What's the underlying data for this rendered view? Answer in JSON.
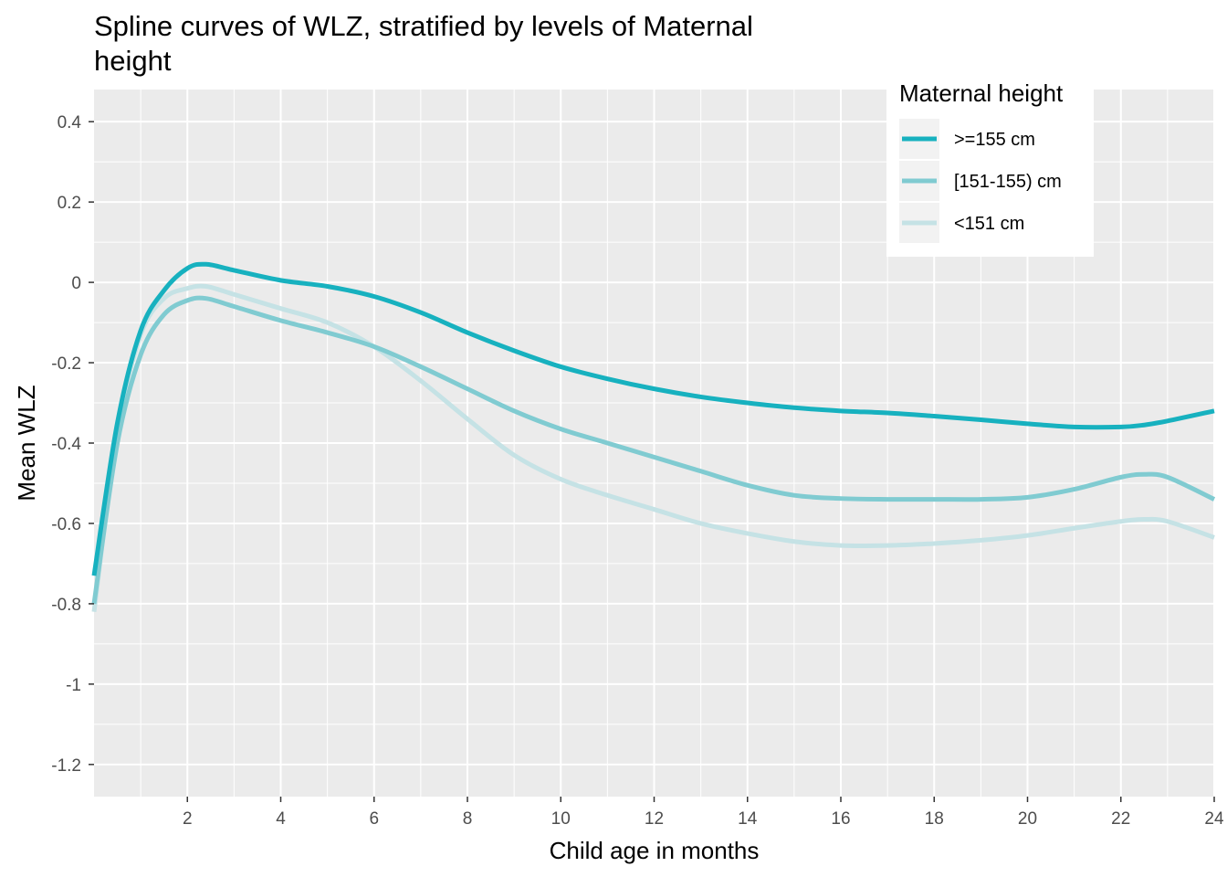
{
  "chart_data": {
    "type": "line",
    "title": "Spline curves of WLZ, stratified by levels of Maternal height",
    "xlabel": "Child age in months",
    "ylabel": "Mean WLZ",
    "xlim": [
      0,
      24
    ],
    "ylim": [
      -1.28,
      0.48
    ],
    "x_ticks": [
      2,
      4,
      6,
      8,
      10,
      12,
      14,
      16,
      18,
      20,
      22,
      24
    ],
    "x_tick_labels": [
      "2",
      "4",
      "6",
      "8",
      "10",
      "12",
      "14",
      "16",
      "18",
      "20",
      "22",
      "24"
    ],
    "y_ticks": [
      0.4,
      0.2,
      0,
      -0.2,
      -0.4,
      -0.6,
      -0.8,
      -1,
      -1.2
    ],
    "y_tick_labels": [
      "0.4",
      "0.2",
      "0",
      "-0.2",
      "-0.4",
      "-0.6",
      "-0.8",
      "-1",
      "-1.2"
    ],
    "grid": true,
    "legend": {
      "title": "Maternal height",
      "position": "top-right"
    },
    "series": [
      {
        "name": ">=155 cm",
        "color": "#17b1bf",
        "x": [
          0,
          0.5,
          1,
          1.5,
          2,
          2.4,
          3,
          4,
          5,
          6,
          7,
          8,
          9,
          10,
          11,
          12,
          13,
          14,
          15,
          16,
          17,
          18,
          19,
          20,
          21,
          22,
          22.5,
          23,
          24
        ],
        "y": [
          -0.73,
          -0.35,
          -0.12,
          -0.02,
          0.035,
          0.045,
          0.03,
          0.005,
          -0.01,
          -0.035,
          -0.075,
          -0.125,
          -0.17,
          -0.21,
          -0.24,
          -0.265,
          -0.285,
          -0.3,
          -0.312,
          -0.32,
          -0.325,
          -0.333,
          -0.342,
          -0.352,
          -0.36,
          -0.36,
          -0.355,
          -0.345,
          -0.32
        ]
      },
      {
        "name": "[151-155) cm",
        "color": "#80cbd1",
        "x": [
          0,
          0.5,
          1,
          1.5,
          2,
          2.4,
          3,
          4,
          5,
          6,
          7,
          8,
          9,
          10,
          11,
          12,
          13,
          14,
          15,
          16,
          17,
          18,
          19,
          20,
          21,
          22,
          22.5,
          23,
          24
        ],
        "y": [
          -0.8,
          -0.4,
          -0.18,
          -0.08,
          -0.045,
          -0.04,
          -0.06,
          -0.095,
          -0.125,
          -0.16,
          -0.21,
          -0.265,
          -0.32,
          -0.365,
          -0.4,
          -0.435,
          -0.47,
          -0.505,
          -0.53,
          -0.538,
          -0.54,
          -0.54,
          -0.54,
          -0.535,
          -0.515,
          -0.485,
          -0.478,
          -0.485,
          -0.54
        ]
      },
      {
        "name": "<151 cm",
        "color": "#c5e2e5",
        "x": [
          0,
          0.5,
          1,
          1.5,
          2,
          2.4,
          3,
          4,
          5,
          6,
          7,
          8,
          9,
          10,
          11,
          12,
          13,
          14,
          15,
          16,
          17,
          18,
          19,
          20,
          21,
          22,
          22.5,
          23,
          24
        ],
        "y": [
          -0.82,
          -0.37,
          -0.13,
          -0.04,
          -0.015,
          -0.01,
          -0.03,
          -0.065,
          -0.1,
          -0.16,
          -0.245,
          -0.34,
          -0.43,
          -0.49,
          -0.53,
          -0.565,
          -0.6,
          -0.625,
          -0.645,
          -0.655,
          -0.655,
          -0.65,
          -0.642,
          -0.63,
          -0.612,
          -0.595,
          -0.59,
          -0.595,
          -0.635
        ]
      }
    ]
  }
}
